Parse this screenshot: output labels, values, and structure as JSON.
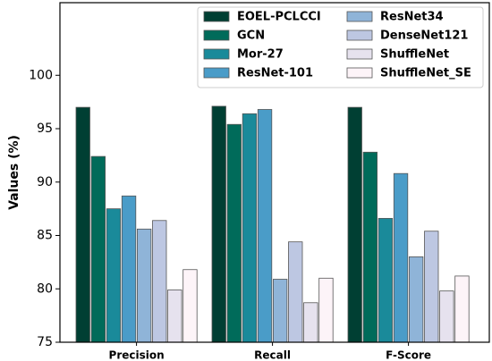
{
  "chart_data": {
    "type": "bar",
    "title": "",
    "xlabel": "",
    "ylabel": "Values (%)",
    "ylim": [
      75,
      106.8
    ],
    "yticks": [
      75,
      80,
      85,
      90,
      95,
      100
    ],
    "legend_position": "top-right",
    "grid": false,
    "categories": [
      "Precision",
      "Recall",
      "F-Score"
    ],
    "series": [
      {
        "name": "EOEL-PCLCCI",
        "color": "#003f33",
        "values": [
          97.0,
          97.1,
          97.0
        ]
      },
      {
        "name": "GCN",
        "color": "#006b5a",
        "values": [
          92.4,
          95.4,
          92.8
        ]
      },
      {
        "name": "Mor-27",
        "color": "#1a8a9a",
        "values": [
          87.5,
          96.4,
          86.6
        ]
      },
      {
        "name": "ResNet-101",
        "color": "#4a9cc8",
        "values": [
          88.7,
          96.8,
          90.8
        ]
      },
      {
        "name": "ResNet34",
        "color": "#8fb4d8",
        "values": [
          85.6,
          80.9,
          83.0
        ]
      },
      {
        "name": "DenseNet121",
        "color": "#bdc7e2",
        "values": [
          86.4,
          84.4,
          85.4
        ]
      },
      {
        "name": "ShuffleNet",
        "color": "#e6e2ee",
        "values": [
          79.9,
          78.7,
          79.8
        ]
      },
      {
        "name": "ShuffleNet_SE",
        "color": "#fdf4f8",
        "values": [
          81.8,
          81.0,
          81.2
        ]
      }
    ]
  }
}
